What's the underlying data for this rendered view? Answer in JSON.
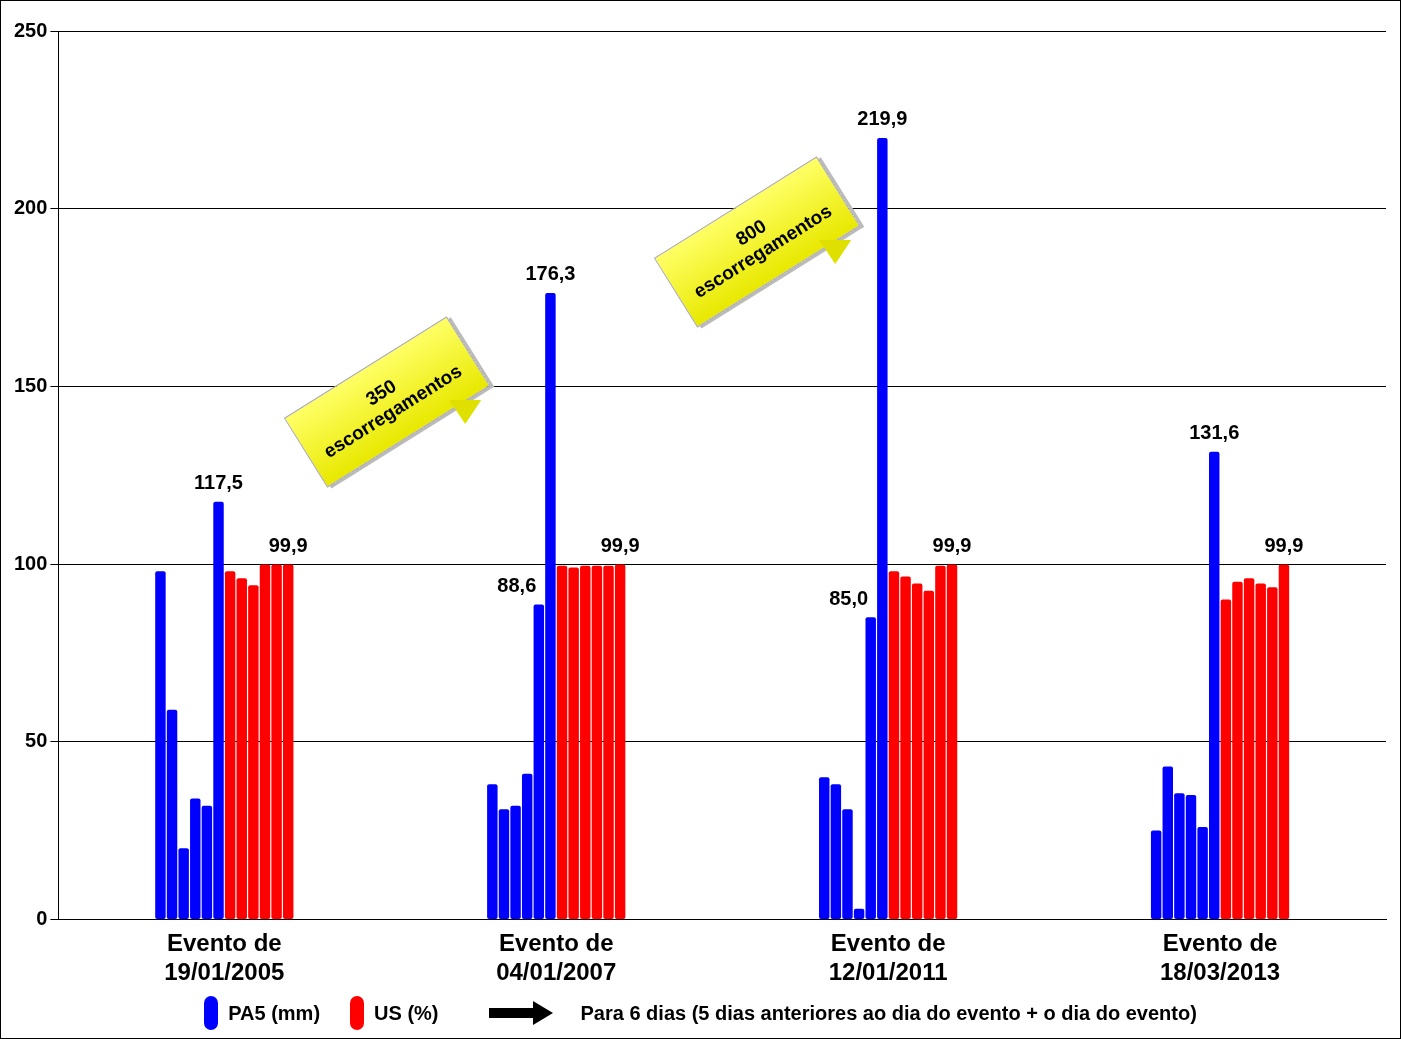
{
  "chart_data": {
    "type": "bar",
    "categories": [
      "Evento de 19/01/2005",
      "Evento de 04/01/2007",
      "Evento de 12/01/2011",
      "Evento de 18/03/2013"
    ],
    "series": [
      {
        "name": "PA5 (mm)",
        "color": "#0000ff",
        "values": [
          98,
          38,
          40,
          25
        ]
      },
      {
        "color": "#0000ff",
        "values": [
          59,
          31,
          38,
          43
        ]
      },
      {
        "color": "#0000ff",
        "values": [
          20,
          32,
          31,
          35.5
        ]
      },
      {
        "color": "#0000ff",
        "values": [
          34,
          41,
          3,
          35
        ]
      },
      {
        "color": "#0000ff",
        "values": [
          32,
          88.6,
          85.0,
          26
        ],
        "value_labels": [
          null,
          "88,6",
          "85,0",
          null
        ]
      },
      {
        "color": "#0000ff",
        "values": [
          117.5,
          176.3,
          219.9,
          131.6
        ],
        "value_labels": [
          "117,5",
          "176,3",
          "219,9",
          "131,6"
        ]
      },
      {
        "name": "US (%)",
        "color": "#ff0000",
        "values": [
          98,
          99.5,
          98,
          90
        ]
      },
      {
        "color": "#ff0000",
        "values": [
          96,
          99,
          96.5,
          95
        ]
      },
      {
        "color": "#ff0000",
        "values": [
          94,
          99.5,
          94.5,
          96
        ]
      },
      {
        "color": "#ff0000",
        "values": [
          99.9,
          99.5,
          92.5,
          94.5
        ]
      },
      {
        "color": "#ff0000",
        "values": [
          99.9,
          99.5,
          99.5,
          93.5
        ]
      },
      {
        "color": "#ff0000",
        "values": [
          99.9,
          99.9,
          99.9,
          99.9
        ],
        "value_labels": [
          "99,9",
          "99,9",
          "99,9",
          "99,9"
        ]
      }
    ],
    "ylim": [
      0,
      250
    ],
    "yticks": [
      0,
      50,
      100,
      150,
      200,
      250
    ],
    "grid": "y",
    "legend": "bottom",
    "annotations": [
      "350 escorregamentos",
      "800 escorregamentos",
      "Para 6 dias (5 dias anteriores ao dia do evento + o dia do evento)"
    ]
  }
}
